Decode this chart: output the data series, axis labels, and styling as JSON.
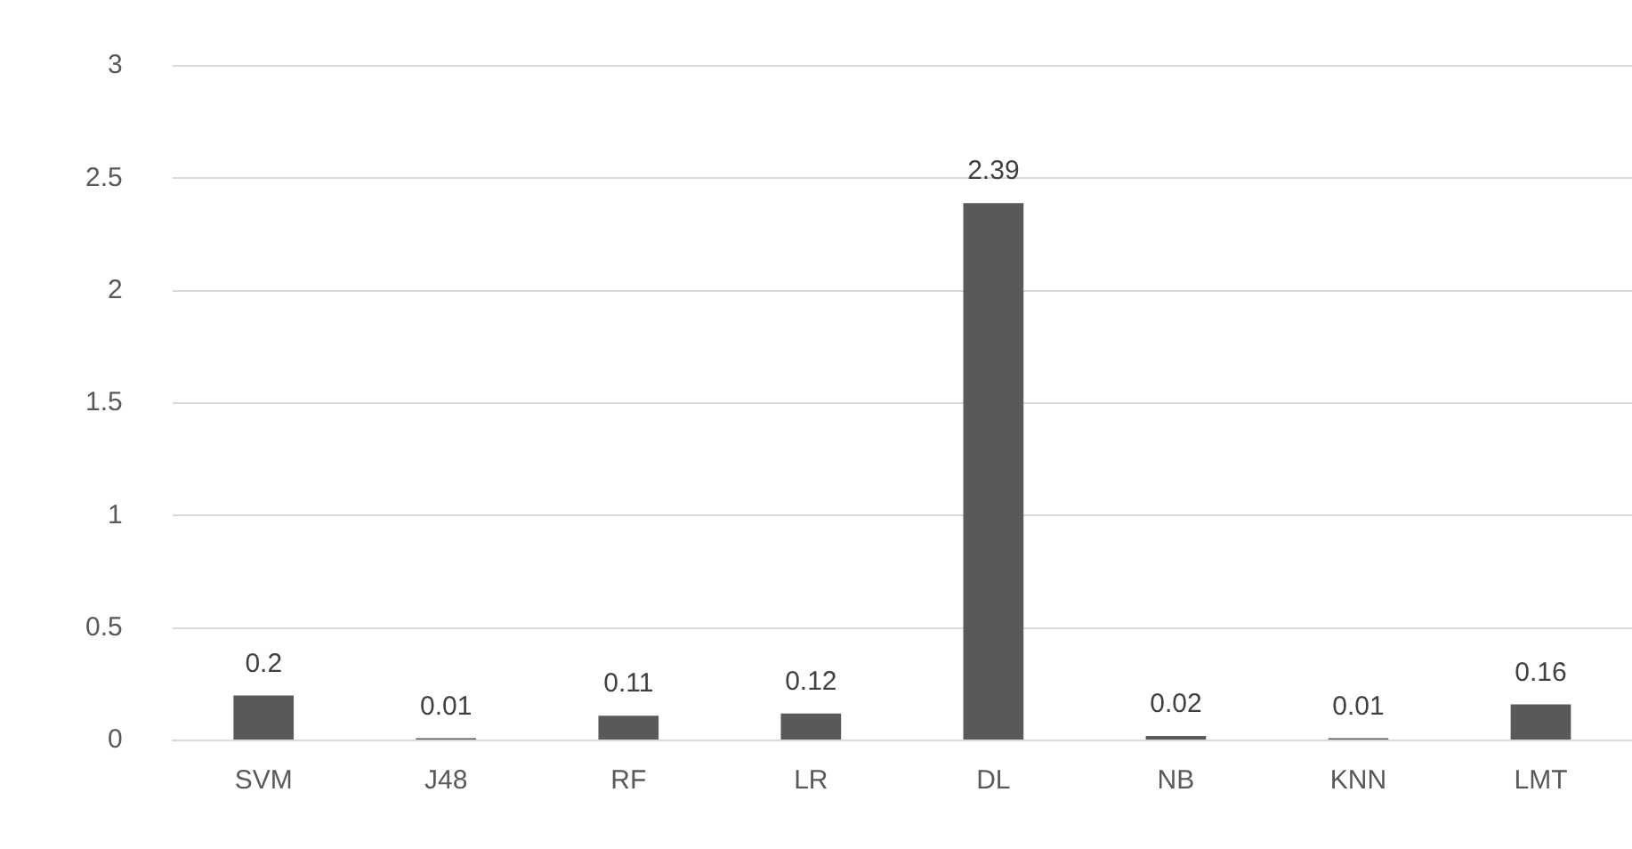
{
  "chart_data": {
    "type": "bar",
    "categories": [
      "SVM",
      "J48",
      "RF",
      "LR",
      "DL",
      "NB",
      "KNN",
      "LMT"
    ],
    "values": [
      0.2,
      0.01,
      0.11,
      0.12,
      2.39,
      0.02,
      0.01,
      0.16
    ],
    "color": "#595959",
    "ylim": [
      0,
      3
    ],
    "yticks": [
      0,
      0.5,
      1,
      1.5,
      2,
      2.5,
      3
    ],
    "grid": "y",
    "data_labels": true,
    "legend": false
  }
}
